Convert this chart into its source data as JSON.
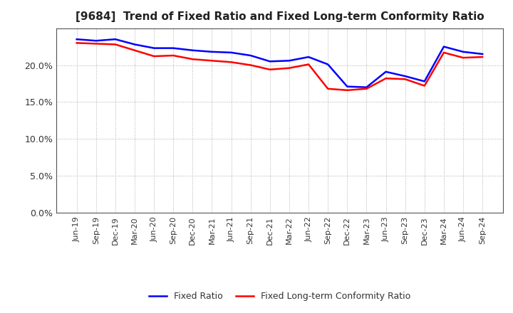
{
  "title": "[9684]  Trend of Fixed Ratio and Fixed Long-term Conformity Ratio",
  "x_labels": [
    "Jun-19",
    "Sep-19",
    "Dec-19",
    "Mar-20",
    "Jun-20",
    "Sep-20",
    "Dec-20",
    "Mar-21",
    "Jun-21",
    "Sep-21",
    "Dec-21",
    "Mar-22",
    "Jun-22",
    "Sep-22",
    "Dec-22",
    "Mar-23",
    "Jun-23",
    "Sep-23",
    "Dec-23",
    "Mar-24",
    "Jun-24",
    "Sep-24"
  ],
  "fixed_ratio": [
    23.5,
    23.3,
    23.5,
    22.8,
    22.3,
    22.3,
    22.0,
    21.8,
    21.7,
    21.3,
    20.5,
    20.6,
    21.1,
    20.1,
    17.1,
    17.0,
    19.1,
    18.5,
    17.8,
    22.5,
    21.8,
    21.5
  ],
  "fixed_lt_ratio": [
    23.0,
    22.9,
    22.8,
    22.0,
    21.2,
    21.3,
    20.8,
    20.6,
    20.4,
    20.0,
    19.4,
    19.6,
    20.1,
    16.8,
    16.6,
    16.8,
    18.2,
    18.1,
    17.2,
    21.7,
    21.0,
    21.1
  ],
  "ylim": [
    0,
    25
  ],
  "yticks": [
    0.0,
    5.0,
    10.0,
    15.0,
    20.0
  ],
  "line_color_fixed": "#0000ff",
  "line_color_lt": "#ff0000",
  "background_color": "#ffffff",
  "plot_bg_color": "#ffffff",
  "grid_color": "#999999",
  "legend_fixed": "Fixed Ratio",
  "legend_lt": "Fixed Long-term Conformity Ratio",
  "title_fontsize": 11,
  "tick_fontsize": 8,
  "ytick_fontsize": 9
}
